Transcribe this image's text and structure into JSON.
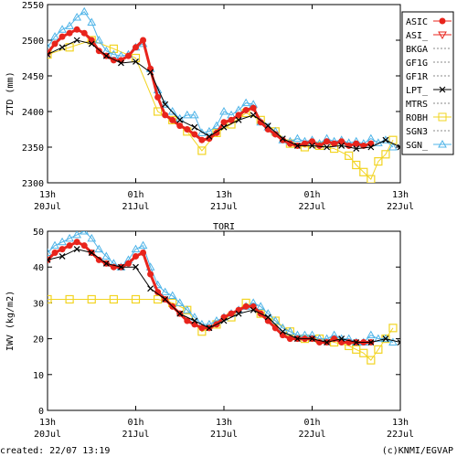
{
  "footer": {
    "created": "created: 22/07 13:19",
    "credit": "(c)KNMI/EGVAP"
  },
  "legend": [
    {
      "name": "ASIC",
      "color": "#e8241c",
      "style": "circle"
    },
    {
      "name": "ASI_",
      "color": "#e8241c",
      "style": "triangle-down"
    },
    {
      "name": "BKGA",
      "color": "#888888",
      "style": "dotted"
    },
    {
      "name": "GF1G",
      "color": "#888888",
      "style": "dotted"
    },
    {
      "name": "GF1R",
      "color": "#888888",
      "style": "dotted"
    },
    {
      "name": "LPT_",
      "color": "#000000",
      "style": "x"
    },
    {
      "name": "MTRS",
      "color": "#888888",
      "style": "dotted"
    },
    {
      "name": "ROBH",
      "color": "#f2d422",
      "style": "square"
    },
    {
      "name": "SGN3",
      "color": "#888888",
      "style": "dotted"
    },
    {
      "name": "SGN_",
      "color": "#4fb4e8",
      "style": "triangle-up"
    }
  ],
  "chart_data": [
    {
      "type": "line",
      "title": "",
      "ylabel": "ZTD (mm)",
      "ylim": [
        2300,
        2550
      ],
      "yticks": [
        2300,
        2350,
        2400,
        2450,
        2500,
        2550
      ],
      "xlim": [
        0,
        48
      ],
      "xticks": [
        {
          "x": 0,
          "l1": "13h",
          "l2": "20Jul"
        },
        {
          "x": 12,
          "l1": "01h",
          "l2": "21Jul"
        },
        {
          "x": 24,
          "l1": "13h",
          "l2": "21Jul"
        },
        {
          "x": 36,
          "l1": "01h",
          "l2": "22Jul"
        },
        {
          "x": 48,
          "l1": "13h",
          "l2": "22Jul"
        }
      ],
      "series": [
        {
          "name": "SGN_",
          "x": [
            0,
            1,
            2,
            3,
            4,
            5,
            6,
            7,
            8,
            9,
            10,
            11,
            12,
            13,
            14,
            15,
            16,
            17,
            18,
            19,
            20,
            21,
            22,
            23,
            24,
            25,
            26,
            27,
            28,
            29,
            30,
            31,
            32,
            33,
            34,
            35,
            36,
            37,
            38,
            39,
            40,
            41,
            42,
            43,
            44,
            45,
            46,
            47
          ],
          "y": [
            2490,
            2505,
            2515,
            2520,
            2532,
            2540,
            2525,
            2500,
            2485,
            2480,
            2478,
            2480,
            2490,
            2495,
            2460,
            2430,
            2410,
            2400,
            2390,
            2395,
            2395,
            2370,
            2372,
            2380,
            2400,
            2395,
            2402,
            2412,
            2410,
            2385,
            2378,
            2372,
            2360,
            2358,
            2362,
            2358,
            2360,
            2355,
            2362,
            2358,
            2360,
            2356,
            2358,
            2355,
            2362,
            2356,
            2360,
            2350
          ]
        },
        {
          "name": "ASIC",
          "x": [
            0,
            1,
            2,
            3,
            4,
            5,
            6,
            7,
            8,
            9,
            10,
            11,
            12,
            13,
            14,
            15,
            16,
            17,
            18,
            19,
            20,
            21,
            22,
            23,
            24,
            25,
            26,
            27,
            28,
            29,
            30,
            31,
            32,
            33,
            34,
            35,
            36,
            37,
            38,
            39,
            40,
            41,
            42,
            43,
            44
          ],
          "y": [
            2482,
            2495,
            2505,
            2510,
            2515,
            2510,
            2500,
            2485,
            2478,
            2472,
            2472,
            2478,
            2490,
            2500,
            2460,
            2420,
            2395,
            2388,
            2380,
            2375,
            2368,
            2360,
            2362,
            2370,
            2385,
            2388,
            2395,
            2402,
            2405,
            2385,
            2375,
            2368,
            2360,
            2355,
            2352,
            2355,
            2358,
            2352,
            2358,
            2355,
            2358,
            2352,
            2355,
            2352,
            2355
          ]
        },
        {
          "name": "LPT_",
          "x": [
            0,
            2,
            4,
            6,
            8,
            10,
            12,
            14,
            16,
            18,
            20,
            22,
            24,
            26,
            28,
            30,
            32,
            34,
            36,
            38,
            40,
            42,
            44,
            46,
            48
          ],
          "y": [
            2480,
            2490,
            2500,
            2495,
            2478,
            2468,
            2470,
            2455,
            2410,
            2388,
            2378,
            2365,
            2378,
            2388,
            2395,
            2380,
            2362,
            2352,
            2352,
            2350,
            2352,
            2348,
            2350,
            2360,
            2350
          ]
        },
        {
          "name": "ROBH",
          "x": [
            0,
            3,
            6,
            9,
            12,
            15,
            17,
            19,
            21,
            23,
            25,
            27,
            29,
            31,
            33,
            35,
            37,
            39,
            41,
            42,
            43,
            44,
            45,
            46,
            47
          ],
          "y": [
            2480,
            2490,
            2500,
            2488,
            2475,
            2400,
            2388,
            2372,
            2345,
            2370,
            2382,
            2398,
            2388,
            2372,
            2355,
            2350,
            2352,
            2348,
            2338,
            2325,
            2315,
            2305,
            2330,
            2340,
            2360
          ]
        }
      ]
    },
    {
      "type": "line",
      "title": "TORI",
      "ylabel": "IWV (kg/m2)",
      "ylim": [
        0,
        50
      ],
      "yticks": [
        0,
        10,
        20,
        30,
        40,
        50
      ],
      "xlim": [
        0,
        48
      ],
      "xticks": [
        {
          "x": 0,
          "l1": "13h",
          "l2": "20Jul"
        },
        {
          "x": 12,
          "l1": "01h",
          "l2": "21Jul"
        },
        {
          "x": 24,
          "l1": "13h",
          "l2": "21Jul"
        },
        {
          "x": 36,
          "l1": "01h",
          "l2": "22Jul"
        },
        {
          "x": 48,
          "l1": "13h",
          "l2": "22Jul"
        }
      ],
      "series": [
        {
          "name": "SGN_",
          "x": [
            0,
            1,
            2,
            3,
            4,
            5,
            6,
            7,
            8,
            9,
            10,
            11,
            12,
            13,
            14,
            15,
            16,
            17,
            18,
            19,
            20,
            21,
            22,
            23,
            24,
            25,
            26,
            27,
            28,
            29,
            30,
            31,
            32,
            33,
            34,
            35,
            36,
            37,
            38,
            39,
            40,
            41,
            42,
            43,
            44,
            45,
            46,
            47
          ],
          "y": [
            44,
            46,
            47,
            48,
            49,
            50,
            48,
            45,
            43,
            41,
            40,
            42,
            45,
            46,
            40,
            35,
            33,
            32,
            30,
            28,
            26,
            24,
            24,
            25,
            26,
            27,
            28,
            29,
            30,
            29,
            27,
            25,
            23,
            22,
            21,
            21,
            21,
            20,
            20,
            21,
            20,
            20,
            19,
            19,
            21,
            20,
            20,
            19
          ]
        },
        {
          "name": "ASIC",
          "x": [
            0,
            1,
            2,
            3,
            4,
            5,
            6,
            7,
            8,
            9,
            10,
            11,
            12,
            13,
            14,
            15,
            16,
            17,
            18,
            19,
            20,
            21,
            22,
            23,
            24,
            25,
            26,
            27,
            28,
            29,
            30,
            31,
            32,
            33,
            34,
            35,
            36,
            37,
            38,
            39,
            40,
            41,
            42,
            43,
            44
          ],
          "y": [
            42,
            44,
            45,
            46,
            47,
            46,
            44,
            42,
            41,
            40,
            40,
            41,
            43,
            44,
            38,
            33,
            31,
            29,
            27,
            25,
            24,
            23,
            23,
            24,
            26,
            27,
            28,
            29,
            29,
            27,
            25,
            23,
            21,
            20,
            20,
            20,
            20,
            19,
            19,
            20,
            19,
            19,
            19,
            19,
            19
          ]
        },
        {
          "name": "LPT_",
          "x": [
            0,
            2,
            4,
            6,
            8,
            10,
            12,
            14,
            16,
            18,
            20,
            22,
            24,
            26,
            28,
            30,
            32,
            34,
            36,
            38,
            40,
            42,
            44,
            46,
            48
          ],
          "y": [
            42,
            43,
            45,
            44,
            41,
            40,
            40,
            34,
            31,
            27,
            25,
            23,
            25,
            27,
            28,
            26,
            22,
            20,
            20,
            19,
            20,
            19,
            19,
            20,
            19
          ]
        },
        {
          "name": "ROBH",
          "x": [
            0,
            3,
            6,
            9,
            12,
            15,
            17,
            19,
            21,
            23,
            25,
            27,
            29,
            31,
            33,
            35,
            37,
            39,
            41,
            42,
            43,
            44,
            45,
            46,
            47
          ],
          "y": [
            31,
            31,
            31,
            31,
            31,
            31,
            30,
            28,
            22,
            24,
            26,
            30,
            27,
            25,
            22,
            20,
            20,
            19,
            18,
            17,
            16,
            14,
            17,
            20,
            23
          ]
        }
      ]
    }
  ]
}
